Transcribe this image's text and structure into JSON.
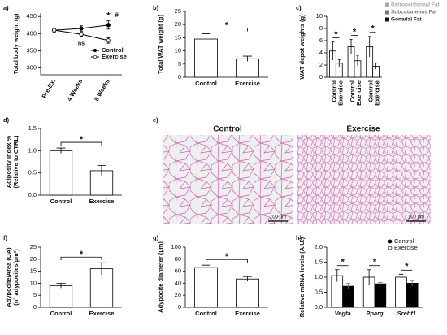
{
  "chart_data": [
    {
      "panel": "a)",
      "type": "line",
      "y_label": [
        "Total body weight (g)"
      ],
      "categories": [
        "Pre-Ex.",
        "4 Weeks",
        "8 Weeks"
      ],
      "series": [
        {
          "name": "Control",
          "color": "#000000",
          "marker_fill": "#000000",
          "values": [
            410,
            415,
            425
          ],
          "errors": [
            5,
            8,
            12
          ]
        },
        {
          "name": "Exercise",
          "color": "#000000",
          "marker_fill": "#ffffff",
          "values": [
            410,
            398,
            380
          ],
          "errors": [
            5,
            6,
            8
          ]
        }
      ],
      "ylim": [
        280,
        460
      ],
      "yticks": [
        300,
        350,
        400,
        450
      ],
      "annotations": [
        "*",
        "#",
        "ns"
      ]
    },
    {
      "panel": "b)",
      "type": "bar",
      "y_label": [
        "Total WAT weight (g)"
      ],
      "categories": [
        "Control",
        "Exercise"
      ],
      "values": [
        14.5,
        7
      ],
      "errors": [
        2,
        1
      ],
      "color": "#ffffff",
      "ylim": [
        0,
        25
      ],
      "yticks": [
        0,
        5,
        10,
        15,
        20,
        25
      ],
      "annotations": [
        "*"
      ]
    },
    {
      "panel": "c)",
      "type": "bar",
      "y_label": [
        "WAT depot weights (g)"
      ],
      "categories": [
        "Retroperitoneal Fat",
        "Subcutaneous Fat",
        "Gonadal Fat"
      ],
      "category_colors": [
        "#aaaaaa",
        "#777777",
        "#111111"
      ],
      "series": [
        {
          "name": "Control",
          "color": "#ffffff",
          "values": [
            4.3,
            5.0,
            5.0
          ],
          "errors": [
            1.5,
            1.2,
            1.7
          ]
        },
        {
          "name": "Exercise",
          "color": "#ffffff",
          "values": [
            2.3,
            2.7,
            1.8
          ],
          "errors": [
            0.6,
            0.8,
            0.5
          ]
        }
      ],
      "ylim": [
        0,
        10
      ],
      "yticks": [
        0,
        2,
        4,
        6,
        8,
        10
      ],
      "legend": "categories",
      "annotations": [
        "*",
        "*",
        "*"
      ]
    },
    {
      "panel": "d)",
      "type": "bar",
      "y_label": [
        "Adiposity Index %",
        "(Relative to CTRL)"
      ],
      "categories": [
        "Control",
        "Exercise"
      ],
      "values": [
        1.0,
        0.55
      ],
      "errors": [
        0.06,
        0.12
      ],
      "color": "#ffffff",
      "ylim": [
        0,
        1.5
      ],
      "yticks": [
        {
          "value": 0,
          "label": "0.0"
        },
        {
          "value": 0.5,
          "label": "0.5"
        },
        {
          "value": 1,
          "label": "1.0"
        },
        {
          "value": 1.5,
          "label": "1.5"
        }
      ],
      "annotations": [
        "*"
      ]
    },
    {
      "panel": "f)",
      "type": "bar",
      "y_label": [
        "Adypocite/Area (OA)",
        "(n° adypocites/µm²)"
      ],
      "categories": [
        "Control",
        "Exercise"
      ],
      "values": [
        9,
        16
      ],
      "errors": [
        1,
        2.5
      ],
      "color": "#ffffff",
      "ylim": [
        0,
        25
      ],
      "yticks": [
        0,
        5,
        10,
        15,
        20,
        25
      ],
      "annotations": [
        "*"
      ]
    },
    {
      "panel": "g)",
      "type": "bar",
      "y_label": [
        "Adypocite diameter (µm)"
      ],
      "categories": [
        "Control",
        "Exercise"
      ],
      "values": [
        66,
        47
      ],
      "errors": [
        4,
        4
      ],
      "color": "#ffffff",
      "ylim": [
        0,
        100
      ],
      "yticks": [
        0,
        20,
        40,
        60,
        80,
        100
      ],
      "annotations": [
        "*"
      ]
    },
    {
      "panel": "h)",
      "type": "bar",
      "y_label": [
        "Relative mRNA levels (A.U.)"
      ],
      "categories": [
        "Vegfa",
        "Pparg",
        "Srebf1"
      ],
      "series": [
        {
          "name": "Control",
          "color": "#ffffff",
          "values": [
            1.05,
            1.0,
            1.0
          ],
          "errors": [
            0.2,
            0.25,
            0.1
          ]
        },
        {
          "name": "Exercise",
          "color": "#000000",
          "values": [
            0.7,
            0.78,
            0.8
          ],
          "errors": [
            0.1,
            0.05,
            0.1
          ]
        }
      ],
      "ylim": [
        0,
        2
      ],
      "yticks": [
        {
          "value": 0,
          "label": "0.0"
        },
        {
          "value": 0.5,
          "label": "0.5"
        },
        {
          "value": 1,
          "label": "1.0"
        },
        {
          "value": 1.5,
          "label": "1.5"
        },
        {
          "value": 2,
          "label": "2.0"
        }
      ],
      "legend": "series",
      "annotations": [
        "*",
        "*",
        "*"
      ]
    }
  ],
  "images": {
    "panel": "e)",
    "labels": [
      "Control",
      "Exercise"
    ],
    "scale_bar": "100 µm"
  }
}
